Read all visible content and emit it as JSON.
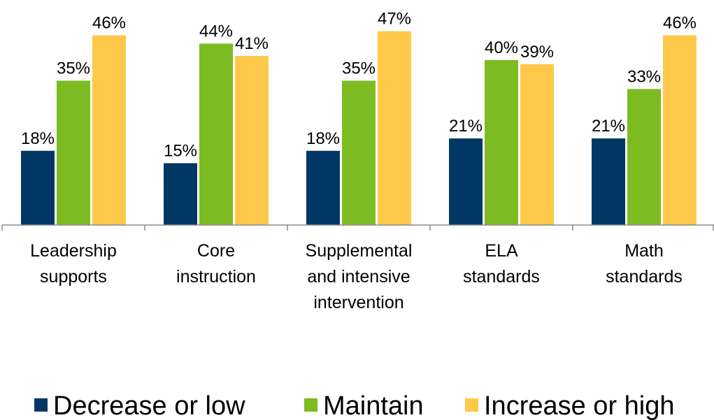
{
  "chart_data": {
    "type": "bar",
    "categories": [
      [
        "Leadership",
        "supports"
      ],
      [
        "Core",
        "instruction"
      ],
      [
        "Supplemental",
        "and intensive",
        "intervention"
      ],
      [
        "ELA",
        "standards"
      ],
      [
        "Math",
        "standards"
      ]
    ],
    "series": [
      {
        "name": "Decrease or low",
        "color": "#003764",
        "values": [
          18,
          15,
          18,
          21,
          21
        ],
        "labels": [
          "18%",
          "15%",
          "18%",
          "21%",
          "21%"
        ]
      },
      {
        "name": "Maintain",
        "color": "#7dbb23",
        "values": [
          35,
          44,
          35,
          40,
          33
        ],
        "labels": [
          "35%",
          "44%",
          "35%",
          "40%",
          "33%"
        ]
      },
      {
        "name": "Increase or high",
        "color": "#fec84a",
        "values": [
          46,
          41,
          47,
          39,
          46
        ],
        "labels": [
          "46%",
          "41%",
          "47%",
          "39%",
          "46%"
        ]
      }
    ],
    "ylim": [
      0,
      50
    ],
    "grid": false,
    "legend_position": "bottom"
  }
}
